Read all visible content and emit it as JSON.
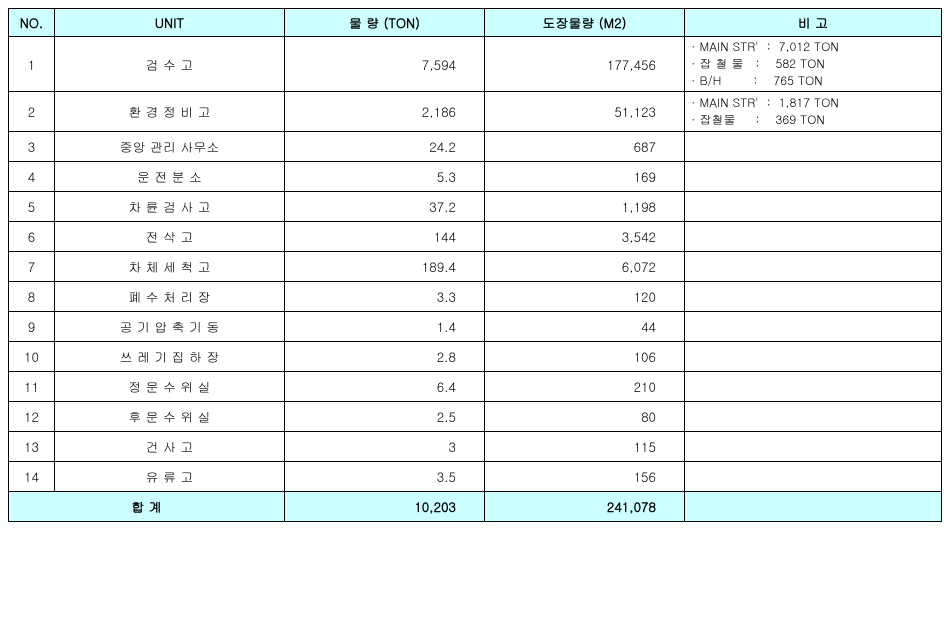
{
  "headers": {
    "no": "NO.",
    "unit": "UNIT",
    "qty": "물   량 (TON)",
    "paint": "도장물량 (M2)",
    "remark": "비          고"
  },
  "rows": [
    {
      "no": "1",
      "unit": "검      수      고",
      "qty": "7,594",
      "paint": "177,456",
      "remark": "· MAIN STR'  :  7,012 TON\n· 잡 철 물   :    582 TON\n· B/H        :    765 TON",
      "tall": "tall"
    },
    {
      "no": "2",
      "unit": "환  경  정  비  고",
      "qty": "2,186",
      "paint": "51,123",
      "remark": "· MAIN STR'  :  1,817 TON\n· 잡철물     :    369 TON",
      "tall": "tall2"
    },
    {
      "no": "3",
      "unit": "중앙 관리 사무소",
      "qty": "24.2",
      "paint": "687",
      "remark": ""
    },
    {
      "no": "4",
      "unit": "운   전   분   소",
      "qty": "5.3",
      "paint": "169",
      "remark": ""
    },
    {
      "no": "5",
      "unit": "차 륜 검 사 고",
      "qty": "37.2",
      "paint": "1,198",
      "remark": ""
    },
    {
      "no": "6",
      "unit": "전      삭      고",
      "qty": "144",
      "paint": "3,542",
      "remark": ""
    },
    {
      "no": "7",
      "unit": "차 체 세 척 고",
      "qty": "189.4",
      "paint": "6,072",
      "remark": ""
    },
    {
      "no": "8",
      "unit": "폐 수 처 리 장",
      "qty": "3.3",
      "paint": "120",
      "remark": ""
    },
    {
      "no": "9",
      "unit": "공 기 압 축 기 동",
      "qty": "1.4",
      "paint": "44",
      "remark": ""
    },
    {
      "no": "10",
      "unit": "쓰 레 기 집 하 장",
      "qty": "2.8",
      "paint": "106",
      "remark": ""
    },
    {
      "no": "11",
      "unit": "정  문 수  위 실",
      "qty": "6.4",
      "paint": "210",
      "remark": ""
    },
    {
      "no": "12",
      "unit": "후  문 수  위 실",
      "qty": "2.5",
      "paint": "80",
      "remark": ""
    },
    {
      "no": "13",
      "unit": "건      사      고",
      "qty": "3",
      "paint": "115",
      "remark": ""
    },
    {
      "no": "14",
      "unit": "유      류      고",
      "qty": "3.5",
      "paint": "156",
      "remark": ""
    }
  ],
  "total": {
    "label": "합               계",
    "qty": "10,203",
    "paint": "241,078",
    "remark": ""
  }
}
